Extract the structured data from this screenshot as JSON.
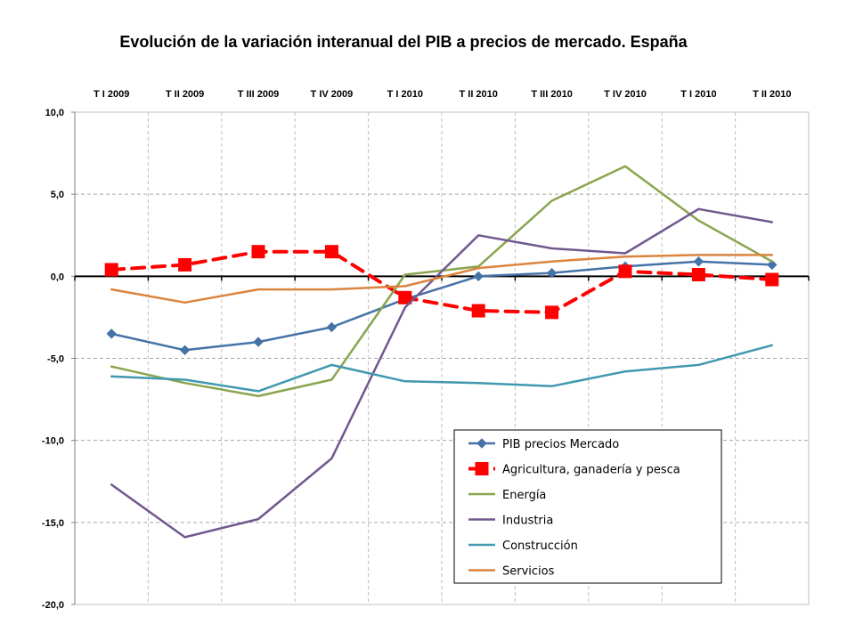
{
  "chart_data": {
    "type": "line",
    "title": "Evolución de la variación interanual del  PIB a precios de mercado. España",
    "categories": [
      "T I 2009",
      "T II 2009",
      "T III 2009",
      "T IV 2009",
      "T I 2010",
      "T II 2010",
      "T III 2010",
      "T IV 2010",
      "T I 2010",
      "T II 2010"
    ],
    "ylim": [
      -20,
      10
    ],
    "yticks": [
      10,
      5,
      0,
      -5,
      -10,
      -15,
      -20
    ],
    "ytick_labels": [
      "10,0",
      "5,0",
      "0,0",
      "-5,0",
      "-10,0",
      "-15,0",
      "-20,0"
    ],
    "grid": true,
    "x_axis_labels_position": "top",
    "legend_position": "bottom-right",
    "series": [
      {
        "name": "PIB  precios Mercado",
        "color": "#4572A7",
        "style": "solid",
        "marker": "diamond",
        "values": [
          -3.5,
          -4.5,
          -4.0,
          -3.1,
          -1.4,
          0.0,
          0.2,
          0.6,
          0.9,
          0.7
        ]
      },
      {
        "name": "Agricultura, ganadería y pesca",
        "color": "#FF0000",
        "style": "dashed",
        "marker": "square",
        "values": [
          0.4,
          0.7,
          1.5,
          1.5,
          -1.3,
          -2.1,
          -2.2,
          0.3,
          0.1,
          -0.2
        ]
      },
      {
        "name": "Energía",
        "color": "#89A54E",
        "style": "solid",
        "marker": "none",
        "values": [
          -5.5,
          -6.5,
          -7.3,
          -6.3,
          0.1,
          0.6,
          4.6,
          6.7,
          3.4,
          0.9
        ]
      },
      {
        "name": "Industria",
        "color": "#71588F",
        "style": "solid",
        "marker": "none",
        "values": [
          -12.7,
          -15.9,
          -14.8,
          -11.1,
          -1.9,
          2.5,
          1.7,
          1.4,
          4.1,
          3.3
        ]
      },
      {
        "name": "Construcción",
        "color": "#4198AF",
        "style": "solid",
        "marker": "none",
        "values": [
          -6.1,
          -6.3,
          -7.0,
          -5.4,
          -6.4,
          -6.5,
          -6.7,
          -5.8,
          -5.4,
          -4.2
        ]
      },
      {
        "name": "Servicios",
        "color": "#DB843D",
        "style": "solid",
        "marker": "none",
        "values": [
          -0.8,
          -1.6,
          -0.8,
          -0.8,
          -0.6,
          0.5,
          0.9,
          1.2,
          1.3,
          1.3
        ]
      }
    ]
  }
}
